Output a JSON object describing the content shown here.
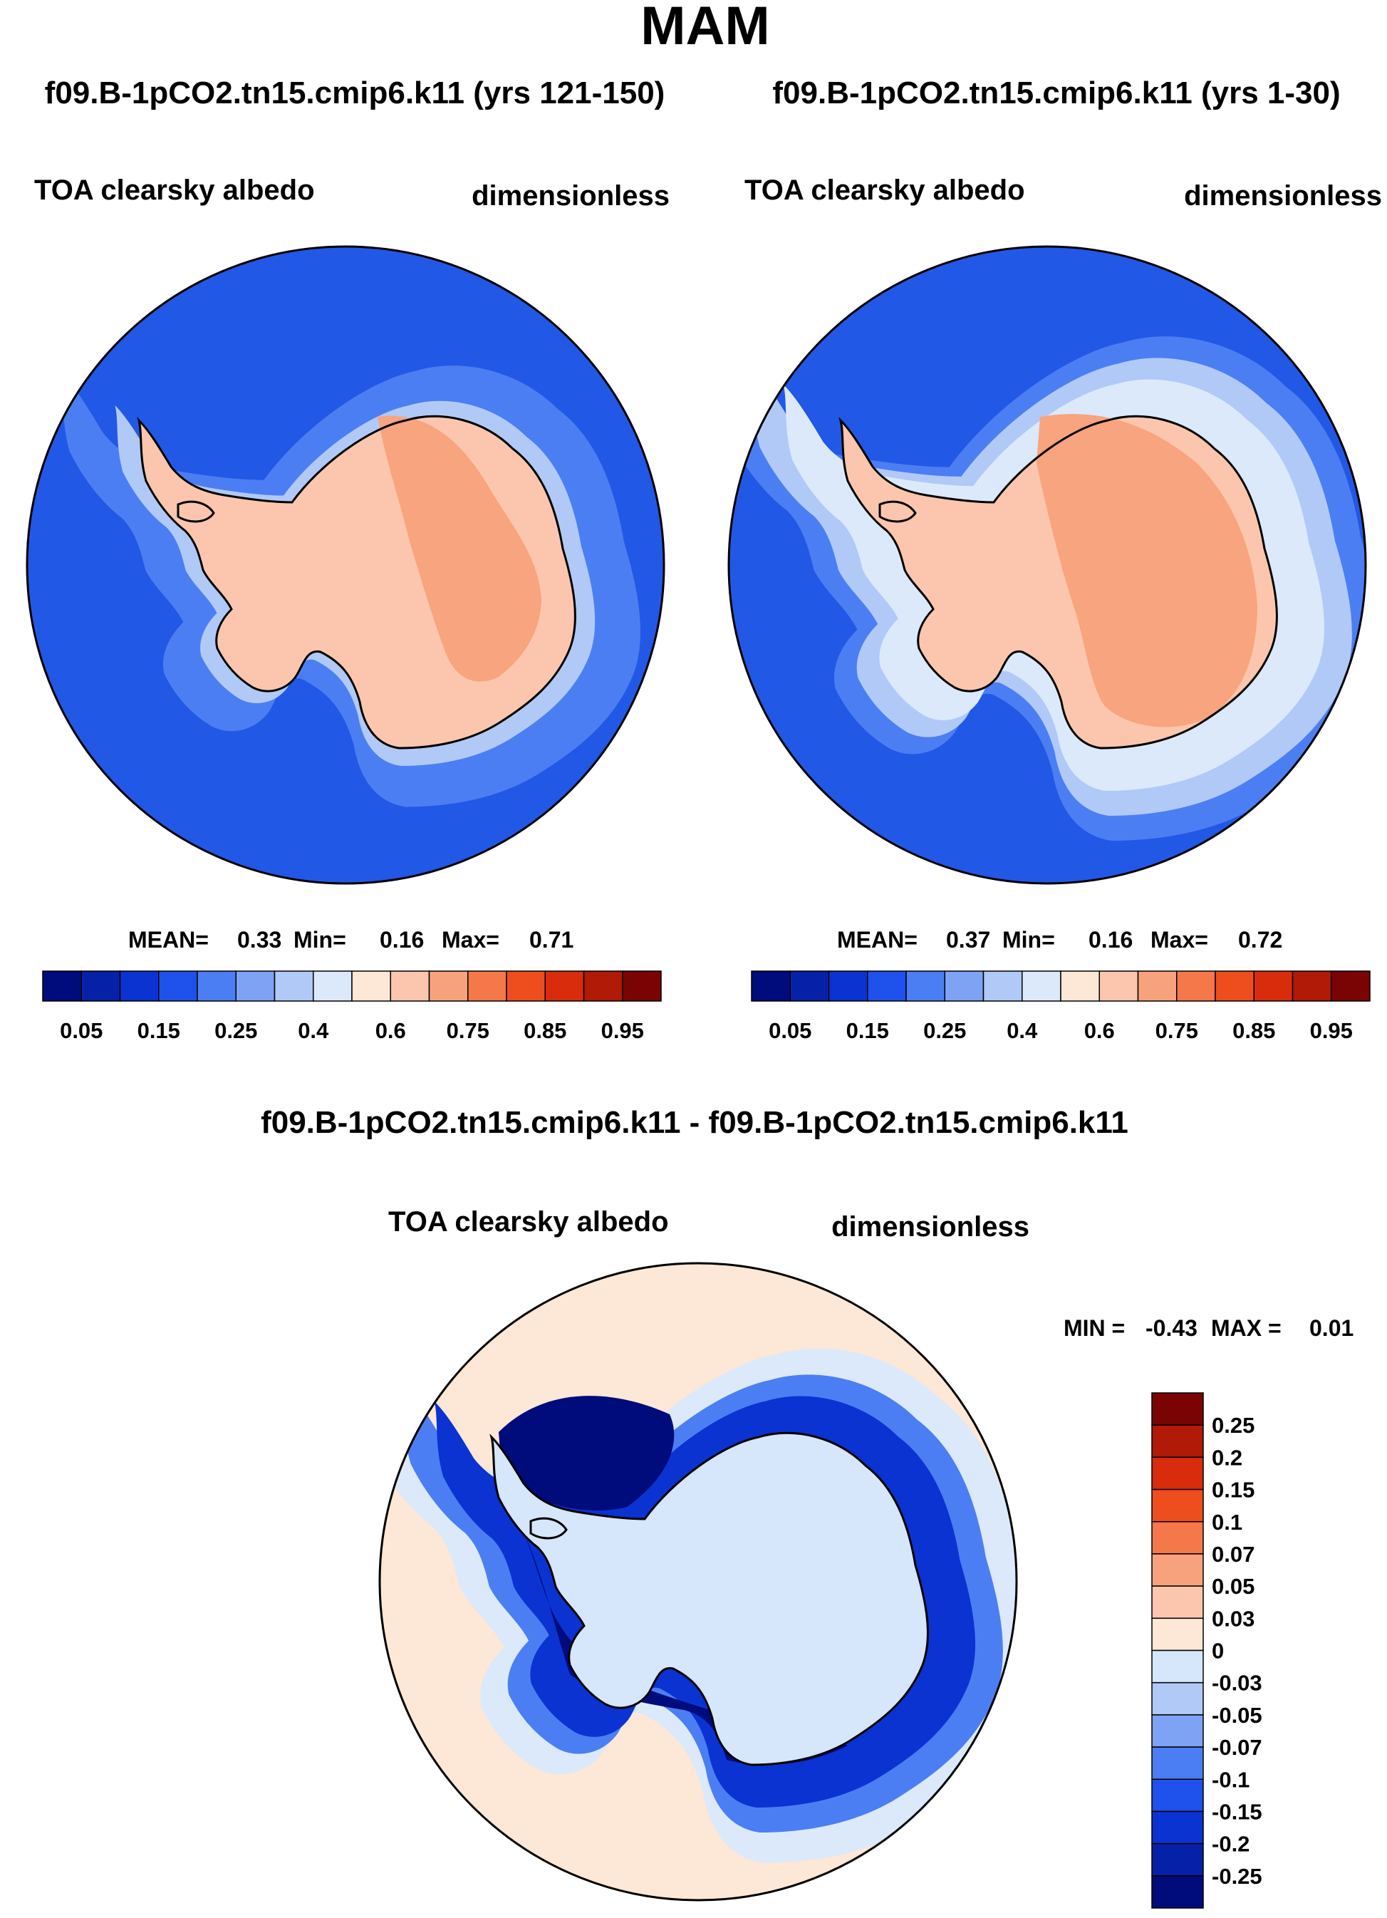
{
  "figure_title": "MAM",
  "panels": [
    {
      "case_title": "f09.B-1pCO2.tn15.cmip6.k11 (yrs 121-150)",
      "variable": "TOA clearsky albedo",
      "units": "dimensionless",
      "stats": {
        "mean_label": "MEAN=",
        "mean": "0.33",
        "min_label": "Min=",
        "min": "0.16",
        "max_label": "Max=",
        "max": "0.71"
      }
    },
    {
      "case_title": "f09.B-1pCO2.tn15.cmip6.k11 (yrs 1-30)",
      "variable": "TOA clearsky albedo",
      "units": "dimensionless",
      "stats": {
        "mean_label": "MEAN=",
        "mean": "0.37",
        "min_label": "Min=",
        "min": "0.16",
        "max_label": "Max=",
        "max": "0.72"
      }
    }
  ],
  "colorbar_top": {
    "colors": [
      "#000b7c",
      "#0521a8",
      "#0a33d2",
      "#1f51ed",
      "#4c7ef3",
      "#7ea2f4",
      "#b0c9f7",
      "#dbe9fb",
      "#fde7d6",
      "#fbc6ad",
      "#f8a27d",
      "#f5784a",
      "#ee4e1d",
      "#d92c0c",
      "#b01a06",
      "#7a0404"
    ],
    "labels": [
      "0.05",
      "0.15",
      "0.25",
      "0.4",
      "0.6",
      "0.75",
      "0.85",
      "0.95"
    ]
  },
  "diff_panel": {
    "title": "f09.B-1pCO2.tn15.cmip6.k11 - f09.B-1pCO2.tn15.cmip6.k11",
    "variable": "TOA clearsky albedo",
    "units": "dimensionless",
    "stats": {
      "min_label": "MIN =",
      "min": "-0.43",
      "max_label": "MAX =",
      "max": "0.01"
    }
  },
  "colorbar_diff": {
    "colors": [
      "#7a0404",
      "#b01a06",
      "#d92c0c",
      "#ee4e1d",
      "#f5784a",
      "#f8a27d",
      "#fbc6ad",
      "#fde7d6",
      "#d6e6fb",
      "#b0c9f7",
      "#7ea2f4",
      "#4c7ef3",
      "#1f51ed",
      "#0a33d2",
      "#0521a8",
      "#000b7c"
    ],
    "labels": [
      "0.25",
      "0.2",
      "0.15",
      "0.1",
      "0.07",
      "0.05",
      "0.03",
      "0",
      "-0.03",
      "-0.05",
      "-0.07",
      "-0.1",
      "-0.15",
      "-0.2",
      "-0.25"
    ]
  },
  "map_colors": {
    "ocean_base": "#2258e6",
    "ocean_light": "#4c7ef3",
    "sea_ice": "#b0c9f7",
    "ice_margin": "#dbe9fb",
    "land": "#fbc6ad",
    "land_high": "#f8a47e",
    "diff_background": "#fde7d6",
    "diff_land": "#d6e6fb",
    "diff_strong": "#000b7c",
    "diff_mid": "#0a33d2"
  }
}
